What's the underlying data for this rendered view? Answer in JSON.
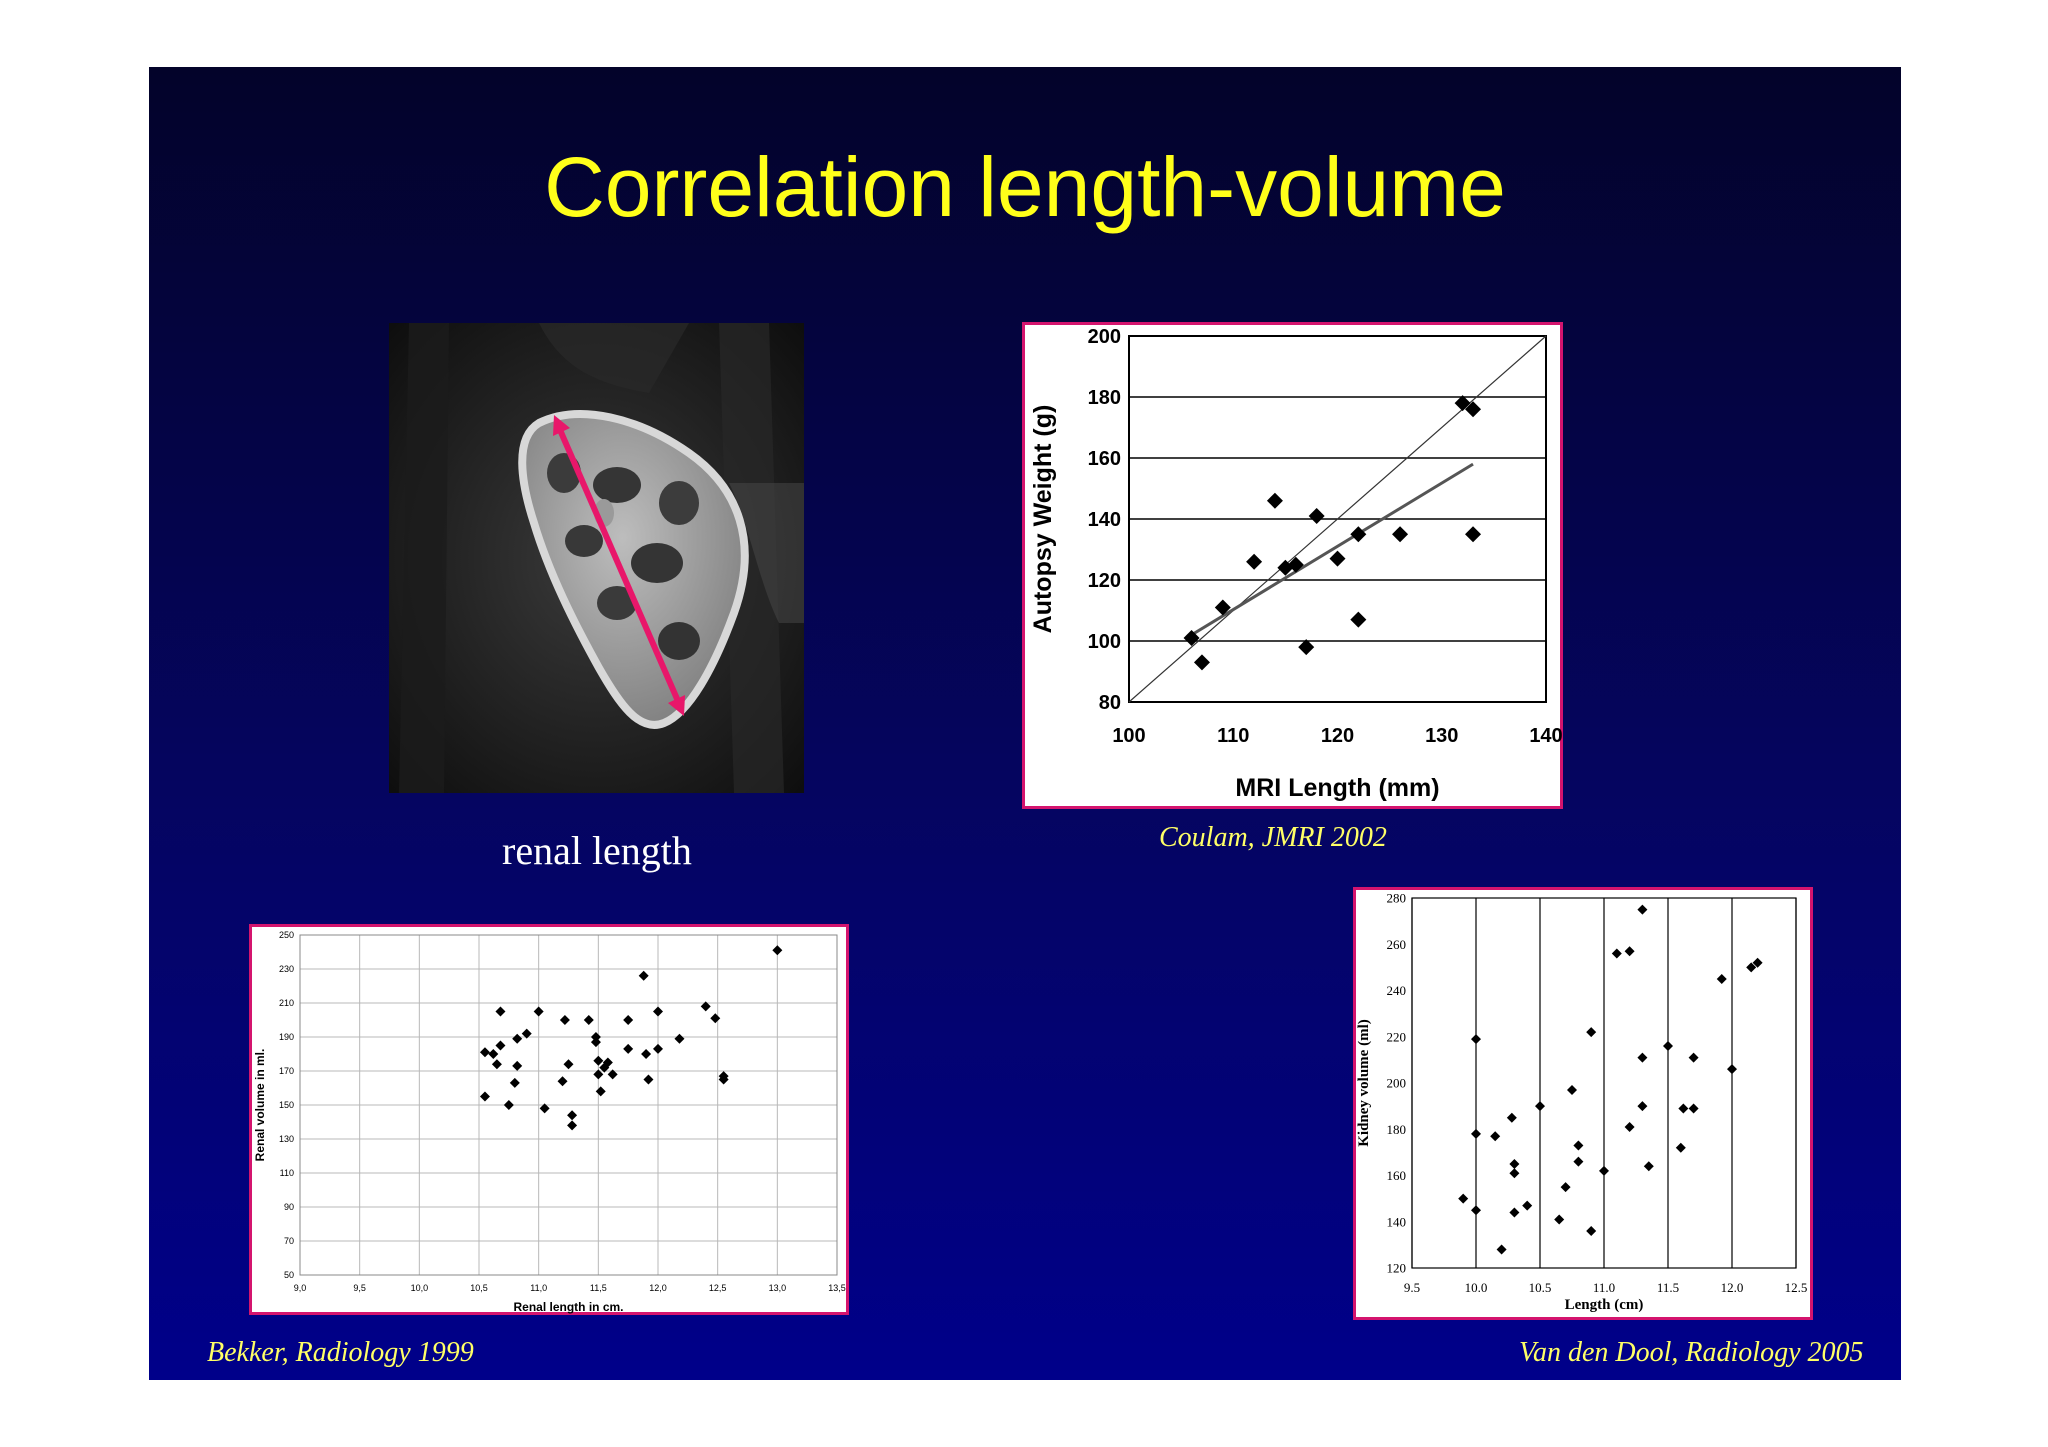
{
  "slide": {
    "title": "Correlation length-volume",
    "image_label": "renal length",
    "captions": {
      "coulam": "Coulam, JMRI 2002",
      "bekker": "Bekker, Radiology 1999",
      "vandendool": "Van den Dool, Radiology 2005"
    },
    "colors": {
      "title": "#ffff1a",
      "caption": "#ffff66",
      "frame": "#d4146e",
      "arrow": "#e8176a"
    }
  },
  "chart_data": [
    {
      "id": "coulam",
      "type": "scatter",
      "xlabel": "MRI Length (mm)",
      "ylabel": "Autopsy Weight (g)",
      "xlim": [
        100,
        140
      ],
      "ylim": [
        80,
        200
      ],
      "xticks": [
        "100",
        "110",
        "120",
        "130",
        "140"
      ],
      "yticks": [
        "80",
        "100",
        "120",
        "140",
        "160",
        "180",
        "200"
      ],
      "grid": "horizontal",
      "marker": "diamond",
      "points": [
        [
          106,
          101
        ],
        [
          107,
          93
        ],
        [
          109,
          111
        ],
        [
          112,
          126
        ],
        [
          114,
          146
        ],
        [
          115,
          124
        ],
        [
          116,
          125
        ],
        [
          117,
          98
        ],
        [
          118,
          141
        ],
        [
          120,
          127
        ],
        [
          122,
          135
        ],
        [
          122,
          107
        ],
        [
          126,
          135
        ],
        [
          132,
          178
        ],
        [
          133,
          176
        ],
        [
          133,
          135
        ]
      ],
      "lines": [
        {
          "kind": "identity",
          "from": [
            100,
            80
          ],
          "to": [
            140,
            200
          ]
        },
        {
          "kind": "regression",
          "from": [
            106,
            102
          ],
          "to": [
            133,
            158
          ]
        }
      ]
    },
    {
      "id": "bekker",
      "type": "scatter",
      "xlabel": "Renal length in cm.",
      "ylabel": "Renal volume in ml.",
      "xlim": [
        9.0,
        13.5
      ],
      "ylim": [
        50,
        250
      ],
      "xticks": [
        "9,0",
        "9,5",
        "10,0",
        "10,5",
        "11,0",
        "11,5",
        "12,0",
        "12,5",
        "13,0",
        "13,5"
      ],
      "yticks": [
        "50",
        "70",
        "90",
        "110",
        "130",
        "150",
        "170",
        "190",
        "210",
        "230",
        "250"
      ],
      "grid": "both",
      "marker": "diamond",
      "points": [
        [
          10.55,
          181
        ],
        [
          10.55,
          155
        ],
        [
          10.62,
          180
        ],
        [
          10.65,
          174
        ],
        [
          10.68,
          205
        ],
        [
          10.68,
          185
        ],
        [
          10.75,
          150
        ],
        [
          10.8,
          163
        ],
        [
          10.82,
          173
        ],
        [
          10.82,
          189
        ],
        [
          10.9,
          192
        ],
        [
          11.0,
          205
        ],
        [
          11.05,
          148
        ],
        [
          11.2,
          164
        ],
        [
          11.22,
          200
        ],
        [
          11.25,
          174
        ],
        [
          11.28,
          144
        ],
        [
          11.28,
          138
        ],
        [
          11.42,
          200
        ],
        [
          11.48,
          190
        ],
        [
          11.48,
          187
        ],
        [
          11.5,
          176
        ],
        [
          11.5,
          168
        ],
        [
          11.52,
          158
        ],
        [
          11.55,
          172
        ],
        [
          11.58,
          175
        ],
        [
          11.62,
          168
        ],
        [
          11.75,
          183
        ],
        [
          11.75,
          200
        ],
        [
          11.88,
          226
        ],
        [
          11.9,
          180
        ],
        [
          11.92,
          165
        ],
        [
          12.0,
          205
        ],
        [
          12.0,
          183
        ],
        [
          12.18,
          189
        ],
        [
          12.4,
          208
        ],
        [
          12.48,
          201
        ],
        [
          12.55,
          167
        ],
        [
          12.55,
          165
        ],
        [
          13.0,
          241
        ]
      ]
    },
    {
      "id": "vandendool",
      "type": "scatter",
      "xlabel": "Length (cm)",
      "ylabel": "Kidney volume (ml)",
      "xlim": [
        9.5,
        12.5
      ],
      "ylim": [
        120,
        280
      ],
      "xticks": [
        "9.5",
        "10.0",
        "10.5",
        "11.0",
        "11.5",
        "12.0",
        "12.5"
      ],
      "yticks": [
        "120",
        "140",
        "160",
        "180",
        "200",
        "220",
        "240",
        "260",
        "280"
      ],
      "grid": "vertical",
      "marker": "diamond",
      "points": [
        [
          9.9,
          150
        ],
        [
          10.0,
          145
        ],
        [
          10.0,
          178
        ],
        [
          10.0,
          219
        ],
        [
          10.15,
          177
        ],
        [
          10.2,
          128
        ],
        [
          10.28,
          185
        ],
        [
          10.3,
          144
        ],
        [
          10.3,
          165
        ],
        [
          10.3,
          161
        ],
        [
          10.4,
          147
        ],
        [
          10.5,
          190
        ],
        [
          10.65,
          141
        ],
        [
          10.7,
          155
        ],
        [
          10.75,
          197
        ],
        [
          10.8,
          166
        ],
        [
          10.8,
          173
        ],
        [
          10.9,
          136
        ],
        [
          10.9,
          222
        ],
        [
          11.0,
          162
        ],
        [
          11.1,
          256
        ],
        [
          11.2,
          181
        ],
        [
          11.2,
          257
        ],
        [
          11.3,
          190
        ],
        [
          11.3,
          211
        ],
        [
          11.3,
          275
        ],
        [
          11.35,
          164
        ],
        [
          11.5,
          216
        ],
        [
          11.6,
          172
        ],
        [
          11.62,
          189
        ],
        [
          11.7,
          189
        ],
        [
          11.7,
          211
        ],
        [
          11.92,
          245
        ],
        [
          12.0,
          206
        ],
        [
          12.15,
          250
        ],
        [
          12.2,
          252
        ]
      ]
    }
  ]
}
